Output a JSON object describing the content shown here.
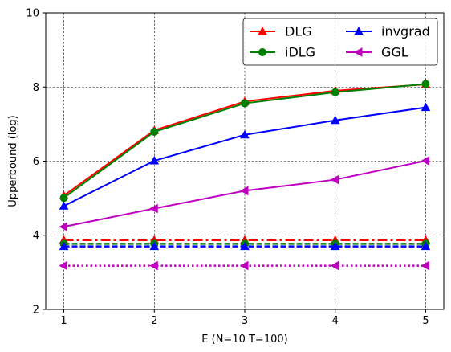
{
  "chart_data": {
    "type": "line",
    "title": "",
    "xlabel": "E (N=10 T=100)",
    "ylabel": "Upperbound (log)",
    "x": [
      1,
      2,
      3,
      4,
      5
    ],
    "xlim": [
      0.8,
      5.2
    ],
    "ylim": [
      2,
      10
    ],
    "xticks": [
      "1",
      "2",
      "3",
      "4",
      "5"
    ],
    "yticks": [
      "2",
      "4",
      "6",
      "8",
      "10"
    ],
    "grid": true,
    "legend_position": "top-right",
    "legend_columns": 2,
    "series": [
      {
        "name": "DLG",
        "color": "#ff0000",
        "marker": "triangle-up",
        "linestyle": "solid",
        "values": [
          5.07,
          6.83,
          7.61,
          7.9,
          8.07
        ]
      },
      {
        "name": "iDLG",
        "color": "#008000",
        "marker": "circle",
        "linestyle": "solid",
        "values": [
          5.01,
          6.79,
          7.56,
          7.86,
          8.08
        ]
      },
      {
        "name": "invgrad",
        "color": "#0000ff",
        "marker": "triangle-up",
        "linestyle": "solid",
        "values": [
          4.79,
          6.01,
          6.71,
          7.1,
          7.45
        ]
      },
      {
        "name": "GGL",
        "color": "#bf00bf",
        "marker": "triangle-left",
        "linestyle": "solid",
        "values": [
          4.23,
          4.72,
          5.2,
          5.5,
          6.01
        ]
      },
      {
        "name": "",
        "color": "#ff0000",
        "marker": "triangle-up",
        "linestyle": "dashdot",
        "values": [
          3.87,
          3.87,
          3.87,
          3.87,
          3.87
        ]
      },
      {
        "name": "",
        "color": "#008000",
        "marker": "circle",
        "linestyle": "dashed",
        "values": [
          3.77,
          3.77,
          3.77,
          3.77,
          3.77
        ]
      },
      {
        "name": "",
        "color": "#0000ff",
        "marker": "triangle-up",
        "linestyle": "dashed",
        "values": [
          3.7,
          3.7,
          3.7,
          3.7,
          3.7
        ]
      },
      {
        "name": "",
        "color": "#bf00bf",
        "marker": "triangle-left",
        "linestyle": "dotted",
        "values": [
          3.18,
          3.18,
          3.18,
          3.18,
          3.18
        ]
      }
    ]
  }
}
